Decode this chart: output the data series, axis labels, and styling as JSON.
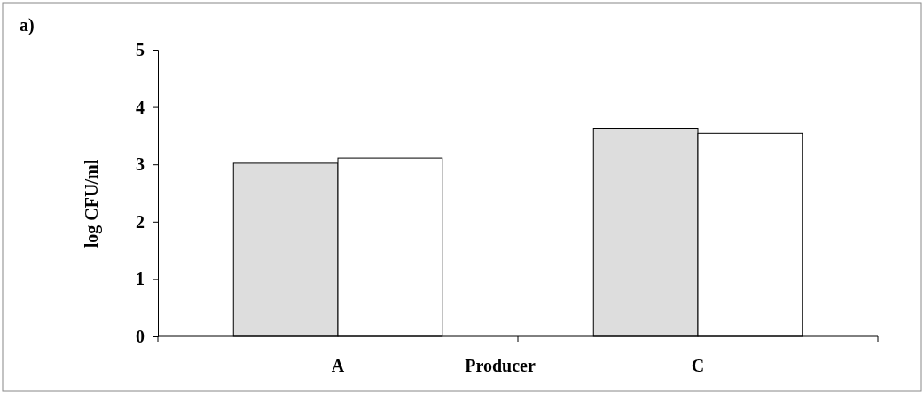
{
  "chart_data": {
    "type": "bar",
    "categories": [
      "A",
      "C"
    ],
    "xlabel": "Producer",
    "ylabel": "log CFU/ml",
    "annotations": [
      "a)"
    ],
    "series": [
      {
        "color": "#dddddd",
        "values": [
          3.02,
          3.63
        ]
      },
      {
        "color": "#ffffff",
        "values": [
          3.11,
          3.54
        ]
      }
    ],
    "ylim": [
      0,
      5
    ],
    "yticks": [
      0,
      1,
      2,
      3,
      4,
      5
    ],
    "grid": false
  }
}
